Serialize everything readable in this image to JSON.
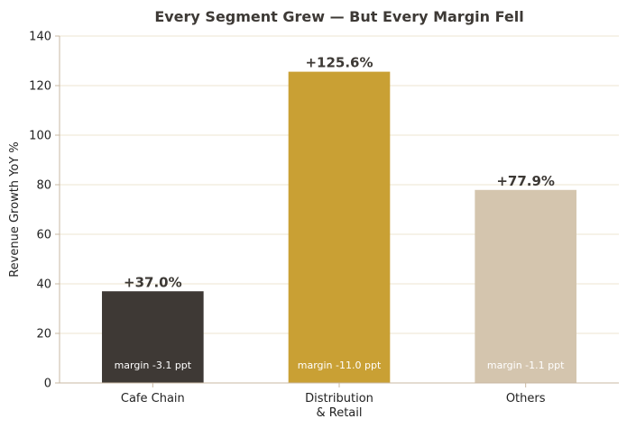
{
  "chart_data": {
    "type": "bar",
    "title": "Every Segment Grew — But Every Margin Fell",
    "xlabel": "",
    "ylabel": "Revenue Growth YoY %",
    "ylim": [
      0,
      140
    ],
    "yticks": [
      0,
      20,
      40,
      60,
      80,
      100,
      120,
      140
    ],
    "grid": true,
    "categories": [
      [
        "Cafe Chain"
      ],
      [
        "Distribution",
        "& Retail"
      ],
      [
        "Others"
      ]
    ],
    "values": [
      37.0,
      125.6,
      77.9
    ],
    "value_labels": [
      "+37.0%",
      "+125.6%",
      "+77.9%"
    ],
    "inner_labels": [
      "margin -3.1 ppt",
      "margin -11.0 ppt",
      "margin -1.1 ppt"
    ],
    "colors": [
      "#3e3935",
      "#c9a034",
      "#d4c5ae"
    ],
    "grid_color": "#ede5d0",
    "axis_color": "#c9b8a3",
    "title_color": "#3d3935"
  }
}
